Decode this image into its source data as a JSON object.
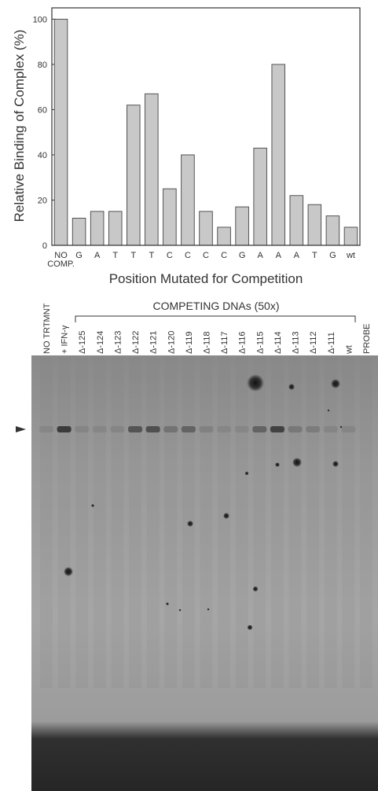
{
  "chart_data": {
    "type": "bar",
    "categories": [
      "NO COMP.",
      "G",
      "A",
      "T",
      "T",
      "T",
      "C",
      "C",
      "C",
      "C",
      "G",
      "A",
      "A",
      "A",
      "T",
      "G",
      "wt"
    ],
    "values": [
      100,
      12,
      15,
      15,
      62,
      67,
      25,
      40,
      15,
      8,
      17,
      43,
      80,
      22,
      18,
      13,
      8
    ],
    "xlabel": "Position Mutated for Competition",
    "ylabel": "Relative Binding of Complex (%)",
    "ylim": [
      0,
      105
    ],
    "yticks": [
      0,
      20,
      40,
      60,
      80,
      100
    ],
    "grid": false,
    "bar_color": "#c8c8c8"
  },
  "gel": {
    "header": "COMPETING DNAs (50x)",
    "lanes": [
      "NO TRTMNT",
      "+ IFN-γ",
      "Δ-125",
      "Δ-124",
      "Δ-123",
      "Δ-122",
      "Δ-121",
      "Δ-120",
      "Δ-119",
      "Δ-118",
      "Δ-117",
      "Δ-116",
      "Δ-115",
      "Δ-114",
      "Δ-113",
      "Δ-112",
      "Δ-111",
      "wt",
      "PROBE"
    ],
    "band_intensity": [
      0.1,
      0.85,
      0.12,
      0.1,
      0.12,
      0.6,
      0.65,
      0.3,
      0.45,
      0.15,
      0.1,
      0.1,
      0.45,
      0.8,
      0.25,
      0.2,
      0.12,
      0.12,
      0.0
    ]
  }
}
